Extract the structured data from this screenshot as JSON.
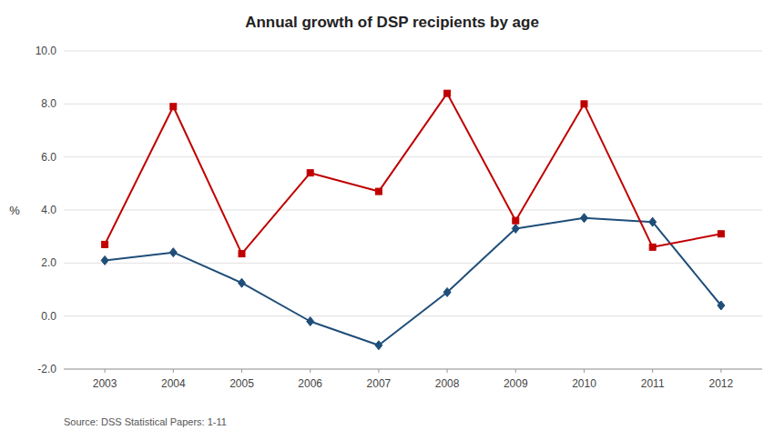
{
  "chart_data": {
    "type": "line",
    "title": "Annual growth of DSP recipients by age",
    "ylabel": "%",
    "x": [
      2003,
      2004,
      2005,
      2006,
      2007,
      2008,
      2009,
      2010,
      2011,
      2012
    ],
    "xlim": [
      2002.4,
      2012.6
    ],
    "xticks": [
      2003,
      2004,
      2005,
      2006,
      2007,
      2008,
      2009,
      2010,
      2011,
      2012
    ],
    "ylim": [
      -2.0,
      10.0
    ],
    "yticks": [
      {
        "value": -2.0,
        "label": "-2.0"
      },
      {
        "value": 0.0,
        "label": "0.0"
      },
      {
        "value": 2.0,
        "label": "2.0"
      },
      {
        "value": 4.0,
        "label": "4.0"
      },
      {
        "value": 6.0,
        "label": "6.0"
      },
      {
        "value": 8.0,
        "label": "8.0"
      },
      {
        "value": 10.0,
        "label": "10.0"
      }
    ],
    "grid": true,
    "series": [
      {
        "color": "#1f4e79",
        "marker": "diamond",
        "values": [
          2.1,
          2.4,
          1.25,
          -0.2,
          -1.1,
          0.9,
          3.3,
          3.7,
          3.55,
          0.4
        ]
      },
      {
        "color": "#c00000",
        "marker": "square",
        "values": [
          2.7,
          7.9,
          2.35,
          5.4,
          4.7,
          8.4,
          3.6,
          8.0,
          2.6,
          3.1
        ]
      }
    ],
    "annotations": [
      "Source: DSS Statistical Papers: 1-11"
    ]
  }
}
